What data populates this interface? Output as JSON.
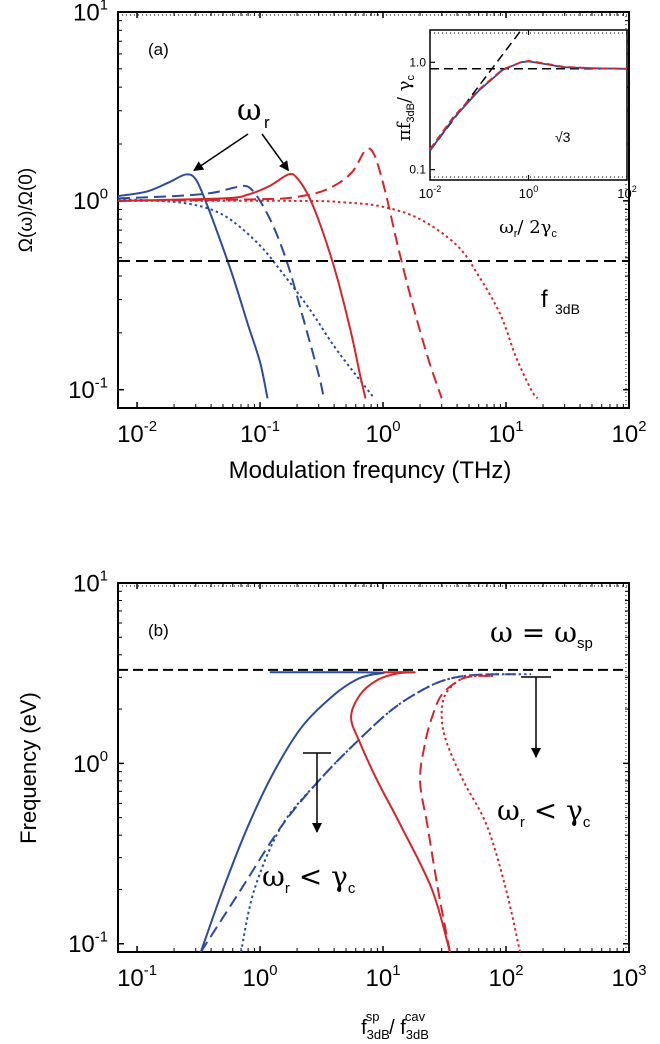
{
  "chart_data": [
    {
      "type": "line",
      "panel_label": "(a)",
      "xlabel": "Modulation frequncy (THz)",
      "ylabel": "Ω(ω)/Ω(0)",
      "xscale": "log",
      "yscale": "log",
      "xlim": [
        0.007,
        100
      ],
      "ylim": [
        0.08,
        10
      ],
      "x_ticks": [
        {
          "v": 0.01,
          "b": "10",
          "e": "-2"
        },
        {
          "v": 0.1,
          "b": "10",
          "e": "-1"
        },
        {
          "v": 1,
          "b": "10",
          "e": "0"
        },
        {
          "v": 10,
          "b": "10",
          "e": "1"
        },
        {
          "v": 100,
          "b": "10",
          "e": "2"
        }
      ],
      "y_ticks": [
        {
          "v": 0.1,
          "b": "10",
          "e": "-1"
        },
        {
          "v": 1,
          "b": "10",
          "e": "0"
        },
        {
          "v": 10,
          "b": "10",
          "e": "1"
        }
      ],
      "series": [
        {
          "color": "#2b4ba0",
          "dash": "solid",
          "points": [
            [
              0.007,
              1.06
            ],
            [
              0.012,
              1.12
            ],
            [
              0.018,
              1.25
            ],
            [
              0.025,
              1.38
            ],
            [
              0.03,
              1.3
            ],
            [
              0.036,
              1.0
            ],
            [
              0.045,
              0.68
            ],
            [
              0.06,
              0.4
            ],
            [
              0.08,
              0.22
            ],
            [
              0.1,
              0.14
            ],
            [
              0.115,
              0.09
            ]
          ]
        },
        {
          "color": "#2b4ba0",
          "dash": "dashed",
          "points": [
            [
              0.007,
              1.03
            ],
            [
              0.02,
              1.06
            ],
            [
              0.04,
              1.1
            ],
            [
              0.06,
              1.17
            ],
            [
              0.075,
              1.2
            ],
            [
              0.085,
              1.15
            ],
            [
              0.1,
              1.0
            ],
            [
              0.13,
              0.72
            ],
            [
              0.17,
              0.45
            ],
            [
              0.22,
              0.25
            ],
            [
              0.3,
              0.12
            ],
            [
              0.33,
              0.09
            ]
          ]
        },
        {
          "color": "#2b4ba0",
          "dash": "dotted",
          "points": [
            [
              0.007,
              1.02
            ],
            [
              0.015,
              1.0
            ],
            [
              0.025,
              0.97
            ],
            [
              0.04,
              0.9
            ],
            [
              0.06,
              0.78
            ],
            [
              0.1,
              0.58
            ],
            [
              0.15,
              0.42
            ],
            [
              0.25,
              0.27
            ],
            [
              0.4,
              0.17
            ],
            [
              0.6,
              0.12
            ],
            [
              0.85,
              0.09
            ]
          ]
        },
        {
          "color": "#d6252a",
          "dash": "solid",
          "points": [
            [
              0.007,
              1.0
            ],
            [
              0.05,
              1.03
            ],
            [
              0.08,
              1.08
            ],
            [
              0.12,
              1.2
            ],
            [
              0.17,
              1.38
            ],
            [
              0.2,
              1.32
            ],
            [
              0.25,
              1.05
            ],
            [
              0.32,
              0.7
            ],
            [
              0.42,
              0.4
            ],
            [
              0.55,
              0.2
            ],
            [
              0.65,
              0.12
            ],
            [
              0.72,
              0.09
            ]
          ]
        },
        {
          "color": "#d6252a",
          "dash": "dashed",
          "points": [
            [
              0.007,
              1.0
            ],
            [
              0.1,
              1.02
            ],
            [
              0.2,
              1.05
            ],
            [
              0.35,
              1.15
            ],
            [
              0.55,
              1.4
            ],
            [
              0.72,
              1.85
            ],
            [
              0.85,
              1.75
            ],
            [
              1.05,
              1.1
            ],
            [
              1.3,
              0.6
            ],
            [
              1.7,
              0.3
            ],
            [
              2.3,
              0.15
            ],
            [
              3.0,
              0.09
            ]
          ]
        },
        {
          "color": "#d6252a",
          "dash": "dotted",
          "points": [
            [
              0.007,
              1.0
            ],
            [
              0.2,
              1.0
            ],
            [
              0.5,
              0.98
            ],
            [
              1.0,
              0.93
            ],
            [
              2.0,
              0.8
            ],
            [
              4.0,
              0.58
            ],
            [
              6.0,
              0.4
            ],
            [
              9.0,
              0.25
            ],
            [
              12.0,
              0.15
            ],
            [
              16.0,
              0.1
            ],
            [
              18.0,
              0.09
            ]
          ]
        }
      ],
      "reference_line": {
        "value": 0.48,
        "label": "f",
        "label_sub": "3dB"
      },
      "annotation": {
        "symbol": "ω",
        "sub": "r",
        "arrow_targets": [
          [
            0.025,
            1.38
          ],
          [
            0.17,
            1.38
          ]
        ]
      },
      "inset": {
        "xlabel_base": "ω",
        "xlabel_sub": "r",
        "xlabel_tail": "/ 2γ",
        "xlabel_tail_sub": "c",
        "ylabel_pre": "πf",
        "ylabel_sub": "3dB",
        "ylabel_tail": "/ γ",
        "ylabel_tail_sub": "c",
        "xlim": [
          0.01,
          100
        ],
        "ylim": [
          0.08,
          2.0
        ],
        "x_ticks": [
          {
            "v": 0.01,
            "b": "10",
            "e": "-2"
          },
          {
            "v": 1,
            "b": "10",
            "e": "0"
          },
          {
            "v": 100,
            "b": "10",
            "e": "2"
          }
        ],
        "y_ticks": [
          {
            "v": 0.1,
            "t": "0.1"
          },
          {
            "v": 1,
            "t": "1.0"
          }
        ],
        "sqrt_label": "√3",
        "hline": 0.87,
        "asymptote": [
          [
            0.01,
            0.15
          ],
          [
            0.7,
            1.98
          ]
        ],
        "series": [
          {
            "color": "#2b4ba0",
            "dash": "solid",
            "points": [
              [
                0.01,
                0.15
              ],
              [
                0.03,
                0.3
              ],
              [
                0.1,
                0.55
              ],
              [
                0.3,
                0.85
              ],
              [
                0.7,
                1.0
              ],
              [
                1.0,
                1.02
              ],
              [
                2.0,
                0.97
              ],
              [
                5.0,
                0.9
              ],
              [
                20.0,
                0.88
              ],
              [
                100.0,
                0.87
              ]
            ]
          },
          {
            "color": "#d6252a",
            "dash": "dashed",
            "points": [
              [
                0.01,
                0.155
              ],
              [
                0.03,
                0.31
              ],
              [
                0.1,
                0.56
              ],
              [
                0.3,
                0.86
              ],
              [
                0.7,
                1.0
              ],
              [
                1.0,
                1.03
              ],
              [
                2.0,
                0.98
              ],
              [
                5.0,
                0.91
              ],
              [
                20.0,
                0.88
              ],
              [
                100.0,
                0.87
              ]
            ]
          }
        ]
      }
    },
    {
      "type": "line",
      "panel_label": "(b)",
      "xlabel_base": "f",
      "xlabel_sub": "3dB",
      "xlabel_sup": "sp",
      "xlabel_mid": " / f",
      "xlabel_sub2": "3dB",
      "xlabel_sup2": "cav",
      "ylabel": "Frequency (eV)",
      "xscale": "log",
      "yscale": "log",
      "xlim": [
        0.07,
        1000
      ],
      "ylim": [
        0.09,
        10
      ],
      "x_ticks": [
        {
          "v": 0.1,
          "b": "10",
          "e": "-1"
        },
        {
          "v": 1,
          "b": "10",
          "e": "0"
        },
        {
          "v": 10,
          "b": "10",
          "e": "1"
        },
        {
          "v": 100,
          "b": "10",
          "e": "2"
        },
        {
          "v": 1000,
          "b": "10",
          "e": "3"
        }
      ],
      "y_ticks": [
        {
          "v": 0.1,
          "b": "10",
          "e": "-1"
        },
        {
          "v": 1,
          "b": "10",
          "e": "0"
        },
        {
          "v": 10,
          "b": "10",
          "e": "1"
        }
      ],
      "reference_line": {
        "value": 3.3,
        "label_base": "ω = ω",
        "label_sub": "sp"
      },
      "series": [
        {
          "color": "#2b4ba0",
          "dash": "solid",
          "points": [
            [
              0.33,
              0.09
            ],
            [
              0.5,
              0.2
            ],
            [
              0.8,
              0.45
            ],
            [
              1.3,
              0.9
            ],
            [
              2.2,
              1.6
            ],
            [
              4.0,
              2.4
            ],
            [
              6.0,
              2.9
            ],
            [
              8.0,
              3.1
            ],
            [
              10.0,
              3.18
            ],
            [
              5.0,
              3.2
            ],
            [
              1.2,
              3.2
            ]
          ]
        },
        {
          "color": "#2b4ba0",
          "dash": "dashed",
          "points": [
            [
              0.33,
              0.09
            ],
            [
              0.7,
              0.2
            ],
            [
              1.5,
              0.45
            ],
            [
              3.0,
              0.8
            ],
            [
              6.0,
              1.3
            ],
            [
              12.0,
              2.0
            ],
            [
              22.0,
              2.6
            ],
            [
              35.0,
              2.95
            ],
            [
              60.0,
              3.1
            ],
            [
              120.0,
              3.12
            ]
          ]
        },
        {
          "color": "#2b4ba0",
          "dash": "dotted",
          "points": [
            [
              0.7,
              0.09
            ],
            [
              0.9,
              0.2
            ],
            [
              1.5,
              0.45
            ],
            [
              3.0,
              0.8
            ],
            [
              6.0,
              1.3
            ],
            [
              12.0,
              2.0
            ],
            [
              22.0,
              2.6
            ],
            [
              35.0,
              2.95
            ],
            [
              60.0,
              3.1
            ],
            [
              160.0,
              3.12
            ]
          ]
        },
        {
          "color": "#d6252a",
          "dash": "solid",
          "points": [
            [
              35.0,
              0.09
            ],
            [
              25.0,
              0.2
            ],
            [
              14.0,
              0.45
            ],
            [
              9.0,
              0.8
            ],
            [
              6.5,
              1.3
            ],
            [
              5.5,
              1.8
            ],
            [
              6.5,
              2.4
            ],
            [
              9.0,
              2.9
            ],
            [
              13.0,
              3.15
            ],
            [
              18.0,
              3.2
            ],
            [
              10.0,
              3.2
            ]
          ]
        },
        {
          "color": "#d6252a",
          "dash": "dashed",
          "points": [
            [
              35.0,
              0.09
            ],
            [
              28.0,
              0.2
            ],
            [
              23.0,
              0.45
            ],
            [
              20.0,
              0.8
            ],
            [
              22.0,
              1.3
            ],
            [
              25.0,
              1.8
            ],
            [
              30.0,
              2.4
            ],
            [
              42.0,
              2.9
            ],
            [
              55.0,
              3.05
            ],
            [
              80.0,
              3.05
            ]
          ]
        },
        {
          "color": "#d6252a",
          "dash": "dotted",
          "points": [
            [
              130.0,
              0.09
            ],
            [
              100.0,
              0.2
            ],
            [
              70.0,
              0.45
            ],
            [
              45.0,
              0.8
            ],
            [
              33.0,
              1.3
            ],
            [
              30.0,
              1.8
            ],
            [
              32.0,
              2.4
            ],
            [
              42.0,
              2.9
            ],
            [
              55.0,
              3.05
            ],
            [
              80.0,
              3.05
            ]
          ]
        }
      ],
      "annotations": [
        {
          "base": "ω",
          "sub": "r",
          "op": " < ",
          "base2": "γ",
          "sub2": "c"
        },
        {
          "base": "ω",
          "sub": "r",
          "op": " < ",
          "base2": "γ",
          "sub2": "c"
        }
      ]
    }
  ]
}
